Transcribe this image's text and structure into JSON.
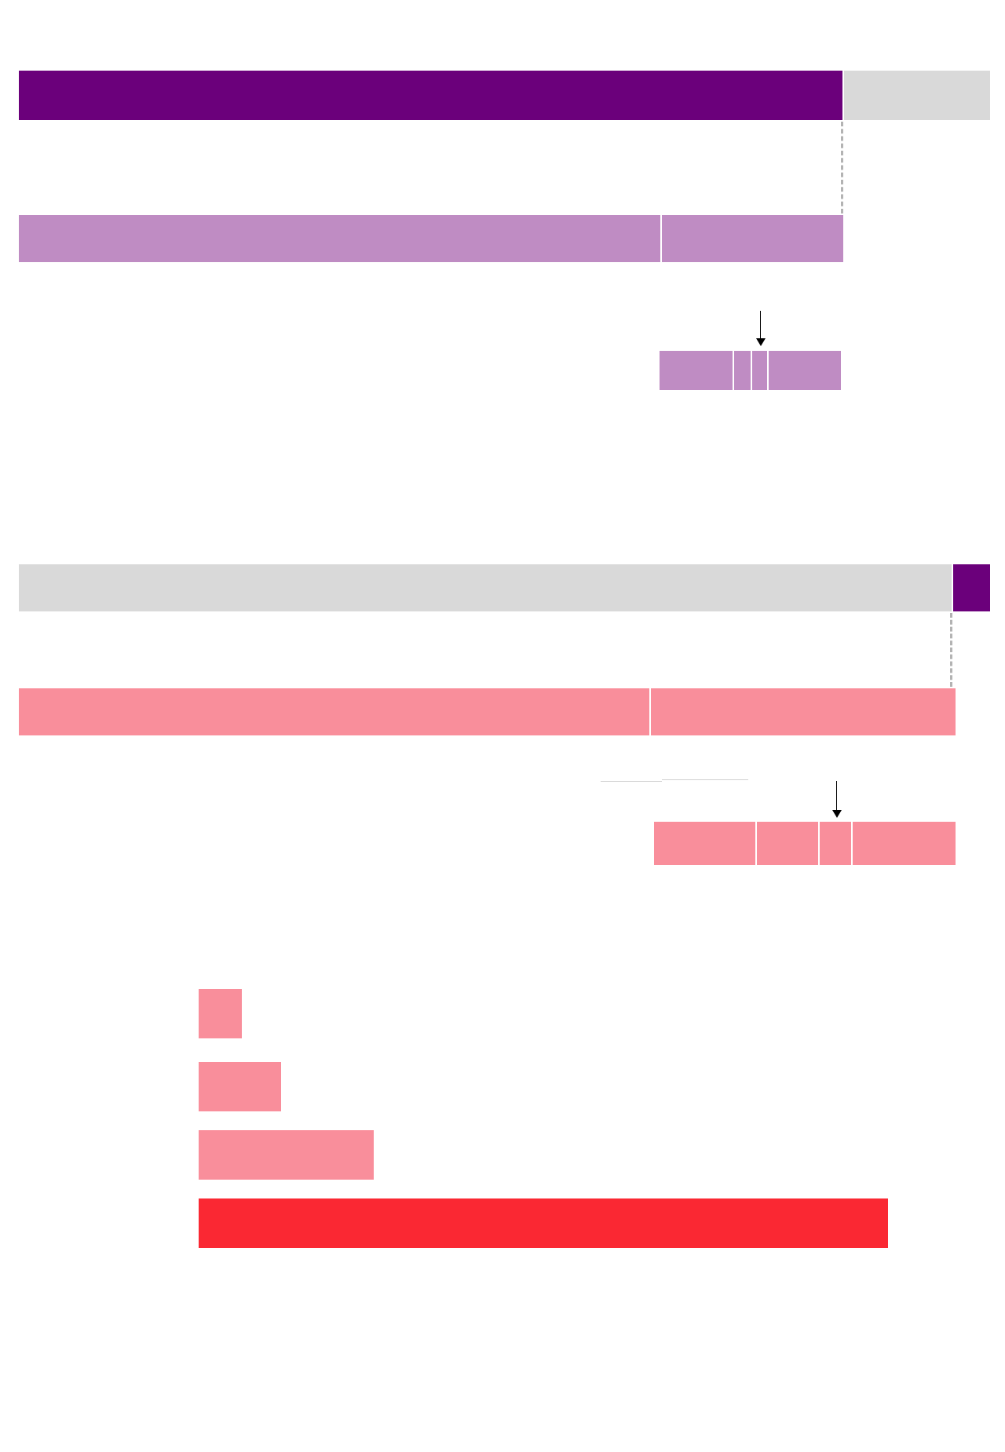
{
  "colors": {
    "dark_purple": "#6b007b",
    "light_purple": "#bf8cc3",
    "grey": "#d9d9d9",
    "pink": "#f98e9b",
    "red": "#fa2833",
    "guide": "#b3b3b3"
  },
  "chart_data": [
    {
      "type": "bar",
      "orientation": "horizontal",
      "stacked": true,
      "series": [
        {
          "values": [
            0.85
          ]
        },
        {
          "values": [
            0.15
          ]
        }
      ]
    },
    {
      "type": "bar",
      "orientation": "horizontal",
      "stacked": true,
      "series": [
        {
          "values": [
            0.78
          ]
        },
        {
          "values": [
            0.22
          ]
        }
      ]
    },
    {
      "type": "bar",
      "orientation": "horizontal",
      "stacked": true,
      "series": [
        {
          "values": [
            0.41
          ]
        },
        {
          "values": [
            0.1
          ]
        },
        {
          "values": [
            0.09
          ]
        },
        {
          "values": [
            0.4
          ]
        }
      ]
    },
    {
      "type": "bar",
      "orientation": "horizontal",
      "stacked": true,
      "series": [
        {
          "values": [
            0.962
          ]
        },
        {
          "values": [
            0.038
          ]
        }
      ]
    },
    {
      "type": "bar",
      "orientation": "horizontal",
      "stacked": true,
      "series": [
        {
          "values": [
            0.675
          ]
        },
        {
          "values": [
            0.325
          ]
        }
      ]
    },
    {
      "type": "bar",
      "orientation": "horizontal",
      "stacked": true,
      "series": [
        {
          "values": [
            0.34
          ]
        },
        {
          "values": [
            0.21
          ]
        },
        {
          "values": [
            0.11
          ]
        },
        {
          "values": [
            0.34
          ]
        }
      ]
    },
    {
      "type": "bar",
      "orientation": "horizontal",
      "categories": [
        "",
        "",
        "",
        ""
      ],
      "values": [
        0.063,
        0.12,
        0.254,
        1.0
      ]
    }
  ]
}
